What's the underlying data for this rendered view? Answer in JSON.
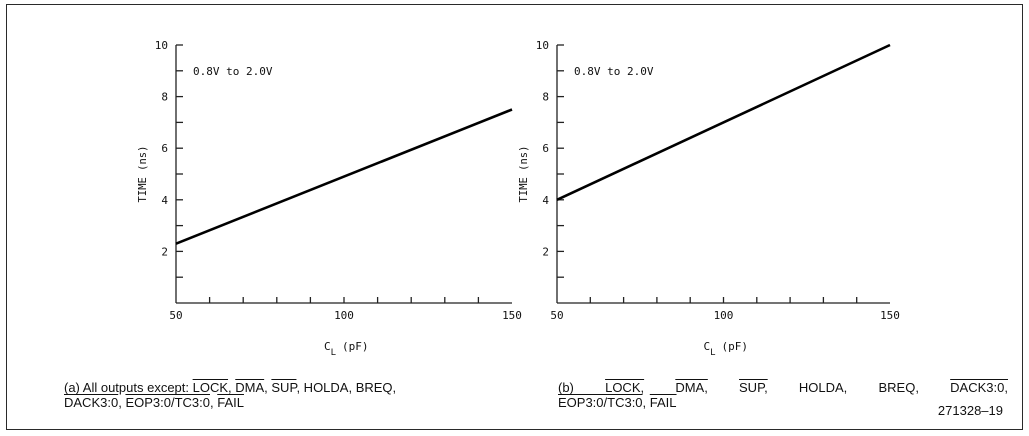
{
  "chart_data": [
    {
      "type": "line",
      "annotation": "0.8V to 2.0V",
      "ylabel": "TIME (ns)",
      "xlabel_main": "C",
      "xlabel_sub": "L",
      "xlabel_unit": "(pF)",
      "xlim": [
        50,
        150
      ],
      "ylim": [
        0,
        10
      ],
      "xticks": [
        50,
        100,
        150
      ],
      "yticks": [
        2,
        4,
        6,
        8,
        10
      ],
      "grid": false,
      "series": [
        {
          "x": [
            50,
            150
          ],
          "values": [
            2.3,
            7.5
          ]
        }
      ]
    },
    {
      "type": "line",
      "annotation": "0.8V to 2.0V",
      "ylabel": "TIME (ns)",
      "xlabel_main": "C",
      "xlabel_sub": "L",
      "xlabel_unit": "(pF)",
      "xlim": [
        50,
        150
      ],
      "ylim": [
        0,
        10
      ],
      "xticks": [
        50,
        100,
        150
      ],
      "yticks": [
        2,
        4,
        6,
        8,
        10
      ],
      "grid": false,
      "series": [
        {
          "x": [
            50,
            150
          ],
          "values": [
            4.0,
            10.0
          ]
        }
      ]
    }
  ],
  "captions": {
    "a": {
      "prefix": "(a) All outputs except: ",
      "lock": "LOCK",
      "dma": "DMA",
      "sup": "SUP",
      "mid": ", HOLDA, BREQ,",
      "dack": "DACK3:0",
      "eop": "EOP3:0/TC3:0",
      "fail": "FAIL"
    },
    "b": {
      "prefix": "(b)",
      "lock": "LOCK,",
      "dma": "DMA,",
      "sup": "SUP,",
      "holda": "HOLDA,",
      "breq": "BREQ,",
      "dack": "DACK3:0,",
      "eop": "EOP3:0/TC3:0",
      "fail": "FAIL"
    }
  },
  "figure_id": "271328–19"
}
